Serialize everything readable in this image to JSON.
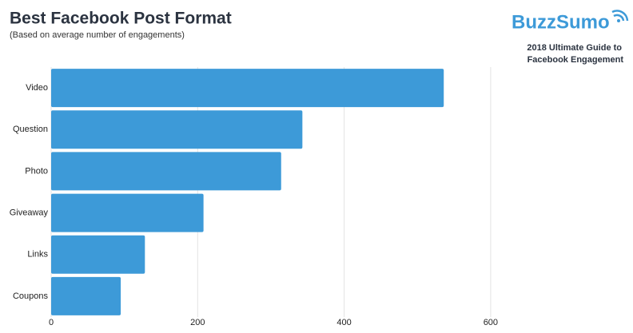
{
  "chart_data": {
    "type": "barh",
    "title": "Best Facebook Post Format",
    "subtitle": "(Based on average number of engagements)",
    "brand": "BuzzSumo",
    "note": [
      "2018 Ultimate Guide to",
      "Facebook Engagement"
    ],
    "categories": [
      "Video",
      "Question",
      "Photo",
      "Giveaway",
      "Links",
      "Coupons"
    ],
    "values": [
      536,
      343,
      314,
      208,
      128,
      95
    ],
    "color": "#3d9ad8",
    "xlim": [
      0,
      790
    ],
    "xticks": [
      0,
      200,
      400,
      600
    ],
    "grid": true
  }
}
